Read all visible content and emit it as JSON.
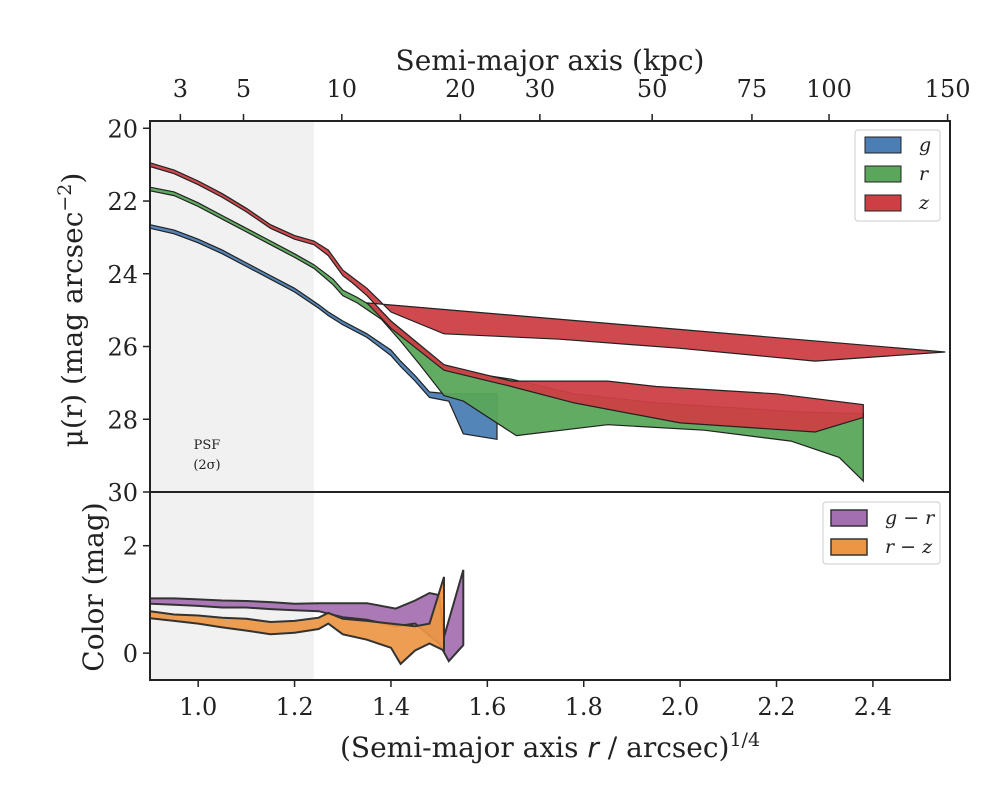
{
  "chart_data": [
    {
      "panel": "surface-brightness",
      "type": "area",
      "title": "",
      "top_xlabel": "Semi-major axis (kpc)",
      "top_xticks": [
        {
          "label": "3",
          "at": 0.963
        },
        {
          "label": "5",
          "at": 1.094
        },
        {
          "label": "10",
          "at": 1.298
        },
        {
          "label": "20",
          "at": 1.544
        },
        {
          "label": "30",
          "at": 1.709
        },
        {
          "label": "50",
          "at": 1.942
        },
        {
          "label": "75",
          "at": 2.149
        },
        {
          "label": "100",
          "at": 2.309
        },
        {
          "label": "150",
          "at": 2.555
        }
      ],
      "ylabel_main": "μ(r) (mag arcsec",
      "ylabel_sup": "−2",
      "ylabel_end": ")",
      "xlim": [
        0.9,
        2.56
      ],
      "ylim": [
        30,
        19.8
      ],
      "y_inverted": true,
      "yticks": [
        20,
        22,
        24,
        26,
        28,
        30
      ],
      "psf_shade": {
        "from": 0.9,
        "to": 1.24,
        "label_line1": "PSF",
        "label_line2": "(2σ)"
      },
      "legend": {
        "placement": "top-right",
        "entries": [
          "g",
          "r",
          "z"
        ]
      },
      "series": [
        {
          "name": "g",
          "color": "#4a7eb4",
          "upper": [
            [
              0.9,
              22.65
            ],
            [
              0.95,
              22.8
            ],
            [
              1.0,
              23.05
            ],
            [
              1.05,
              23.35
            ],
            [
              1.1,
              23.7
            ],
            [
              1.15,
              24.05
            ],
            [
              1.2,
              24.4
            ],
            [
              1.25,
              24.85
            ],
            [
              1.27,
              25.05
            ],
            [
              1.3,
              25.3
            ],
            [
              1.35,
              25.65
            ],
            [
              1.4,
              26.1
            ],
            [
              1.42,
              26.4
            ],
            [
              1.45,
              26.8
            ],
            [
              1.48,
              27.25
            ],
            [
              1.52,
              27.3
            ],
            [
              1.62,
              27.3
            ]
          ],
          "lower": [
            [
              0.9,
              22.75
            ],
            [
              0.95,
              22.9
            ],
            [
              1.0,
              23.15
            ],
            [
              1.05,
              23.45
            ],
            [
              1.1,
              23.8
            ],
            [
              1.15,
              24.15
            ],
            [
              1.2,
              24.5
            ],
            [
              1.25,
              24.95
            ],
            [
              1.27,
              25.15
            ],
            [
              1.3,
              25.4
            ],
            [
              1.35,
              25.75
            ],
            [
              1.4,
              26.25
            ],
            [
              1.42,
              26.55
            ],
            [
              1.45,
              26.95
            ],
            [
              1.48,
              27.4
            ],
            [
              1.52,
              27.5
            ],
            [
              1.55,
              28.4
            ],
            [
              1.62,
              28.55
            ]
          ]
        },
        {
          "name": "r",
          "color": "#5aa65a",
          "upper": [
            [
              0.9,
              21.62
            ],
            [
              0.95,
              21.75
            ],
            [
              1.0,
              22.05
            ],
            [
              1.05,
              22.4
            ],
            [
              1.1,
              22.75
            ],
            [
              1.15,
              23.1
            ],
            [
              1.2,
              23.45
            ],
            [
              1.24,
              23.75
            ],
            [
              1.28,
              24.15
            ],
            [
              1.3,
              24.45
            ],
            [
              1.33,
              24.65
            ],
            [
              1.38,
              25.05
            ],
            [
              1.42,
              25.55
            ],
            [
              1.46,
              26.0
            ],
            [
              1.5,
              26.45
            ],
            [
              1.55,
              26.7
            ],
            [
              1.65,
              26.9
            ],
            [
              1.78,
              27.3
            ],
            [
              1.95,
              27.55
            ],
            [
              2.25,
              27.8
            ],
            [
              2.38,
              27.85
            ]
          ],
          "lower": [
            [
              0.9,
              21.72
            ],
            [
              0.95,
              21.85
            ],
            [
              1.0,
              22.15
            ],
            [
              1.05,
              22.5
            ],
            [
              1.1,
              22.85
            ],
            [
              1.15,
              23.2
            ],
            [
              1.2,
              23.55
            ],
            [
              1.24,
              23.85
            ],
            [
              1.28,
              24.3
            ],
            [
              1.3,
              24.6
            ],
            [
              1.33,
              24.8
            ],
            [
              1.38,
              25.25
            ],
            [
              1.42,
              25.85
            ],
            [
              1.46,
              26.5
            ],
            [
              1.51,
              27.35
            ],
            [
              1.55,
              27.5
            ],
            [
              1.66,
              28.45
            ],
            [
              1.85,
              28.15
            ],
            [
              2.05,
              28.3
            ],
            [
              2.23,
              28.6
            ],
            [
              2.33,
              29.05
            ],
            [
              2.38,
              29.7
            ]
          ]
        },
        {
          "name": "z",
          "color": "#cd3f45",
          "upper": [
            [
              0.9,
              20.95
            ],
            [
              0.95,
              21.15
            ],
            [
              1.0,
              21.45
            ],
            [
              1.05,
              21.8
            ],
            [
              1.1,
              22.2
            ],
            [
              1.15,
              22.65
            ],
            [
              1.2,
              22.95
            ],
            [
              1.24,
              23.1
            ],
            [
              1.27,
              23.35
            ],
            [
              1.3,
              23.9
            ],
            [
              1.32,
              24.1
            ],
            [
              1.35,
              24.4
            ],
            [
              1.4,
              25.05
            ],
            [
              1.51,
              25.65
            ],
            [
              1.75,
              25.8
            ],
            [
              2.0,
              26.05
            ],
            [
              2.28,
              26.4
            ],
            [
              2.55,
              26.15
            ]
          ],
          "lower": [
            [
              0.9,
              21.05
            ],
            [
              0.95,
              21.25
            ],
            [
              1.0,
              21.55
            ],
            [
              1.05,
              21.9
            ],
            [
              1.1,
              22.3
            ],
            [
              1.15,
              22.75
            ],
            [
              1.2,
              23.05
            ],
            [
              1.24,
              23.2
            ],
            [
              1.27,
              23.5
            ],
            [
              1.3,
              24.05
            ],
            [
              1.32,
              24.25
            ],
            [
              1.35,
              24.6
            ],
            [
              1.4,
              25.3
            ],
            [
              1.51,
              26.5
            ],
            [
              1.65,
              26.95
            ],
            [
              1.85,
              26.95
            ],
            [
              1.95,
              27.1
            ],
            [
              2.2,
              27.3
            ],
            [
              2.38,
              27.6
            ],
            [
              2.38,
              27.95
            ],
            [
              2.28,
              28.35
            ],
            [
              2.0,
              28.1
            ],
            [
              1.78,
              27.55
            ],
            [
              1.65,
              27.1
            ],
            [
              1.51,
              26.65
            ],
            [
              1.4,
              25.5
            ],
            [
              1.35,
              24.8
            ]
          ]
        }
      ]
    },
    {
      "panel": "color",
      "type": "area",
      "ylabel": "Color (mag)",
      "xlabel_main": "(Semi-major axis ",
      "xlabel_r": "r",
      "xlabel_mid": " / arcsec)",
      "xlabel_sup": "1/4",
      "xlim": [
        0.9,
        2.56
      ],
      "ylim": [
        -0.5,
        3.0
      ],
      "yticks": [
        0,
        2
      ],
      "xticks": [
        1.0,
        1.2,
        1.4,
        1.6,
        1.8,
        2.0,
        2.2,
        2.4
      ],
      "xtick_labels": [
        "1.0",
        "1.2",
        "1.4",
        "1.6",
        "1.8",
        "2.0",
        "2.2",
        "2.4"
      ],
      "legend": {
        "placement": "top-right",
        "entries": [
          "g − r",
          "r − z"
        ]
      },
      "series": [
        {
          "name": "g − r",
          "color": "#a46fb0",
          "polygon": [
            [
              0.9,
              1.02
            ],
            [
              0.95,
              1.02
            ],
            [
              1.0,
              1.0
            ],
            [
              1.05,
              0.98
            ],
            [
              1.1,
              0.97
            ],
            [
              1.15,
              0.95
            ],
            [
              1.2,
              0.92
            ],
            [
              1.25,
              0.93
            ],
            [
              1.3,
              0.93
            ],
            [
              1.35,
              0.93
            ],
            [
              1.41,
              0.83
            ],
            [
              1.45,
              0.98
            ],
            [
              1.48,
              1.12
            ],
            [
              1.5,
              1.08
            ],
            [
              1.51,
              0.3
            ],
            [
              1.55,
              1.55
            ],
            [
              1.55,
              0.15
            ],
            [
              1.52,
              -0.15
            ],
            [
              1.5,
              0.18
            ],
            [
              1.45,
              0.55
            ],
            [
              1.41,
              0.5
            ],
            [
              1.35,
              0.62
            ],
            [
              1.3,
              0.67
            ],
            [
              1.25,
              0.78
            ],
            [
              1.2,
              0.8
            ],
            [
              1.15,
              0.82
            ],
            [
              1.1,
              0.85
            ],
            [
              1.05,
              0.85
            ],
            [
              1.0,
              0.88
            ],
            [
              0.95,
              0.9
            ],
            [
              0.9,
              0.92
            ]
          ]
        },
        {
          "name": "r − z",
          "color": "#ec9643",
          "polygon": [
            [
              0.9,
              0.78
            ],
            [
              0.95,
              0.72
            ],
            [
              1.0,
              0.7
            ],
            [
              1.05,
              0.66
            ],
            [
              1.1,
              0.64
            ],
            [
              1.15,
              0.58
            ],
            [
              1.2,
              0.6
            ],
            [
              1.25,
              0.66
            ],
            [
              1.27,
              0.75
            ],
            [
              1.3,
              0.64
            ],
            [
              1.35,
              0.6
            ],
            [
              1.4,
              0.55
            ],
            [
              1.45,
              0.5
            ],
            [
              1.48,
              0.55
            ],
            [
              1.51,
              1.42
            ],
            [
              1.51,
              0.05
            ],
            [
              1.48,
              0.18
            ],
            [
              1.45,
              0.05
            ],
            [
              1.42,
              -0.2
            ],
            [
              1.4,
              0.1
            ],
            [
              1.35,
              0.25
            ],
            [
              1.3,
              0.35
            ],
            [
              1.27,
              0.55
            ],
            [
              1.25,
              0.45
            ],
            [
              1.2,
              0.38
            ],
            [
              1.15,
              0.35
            ],
            [
              1.1,
              0.42
            ],
            [
              1.05,
              0.48
            ],
            [
              1.0,
              0.55
            ],
            [
              0.95,
              0.6
            ],
            [
              0.9,
              0.65
            ]
          ]
        }
      ]
    }
  ]
}
